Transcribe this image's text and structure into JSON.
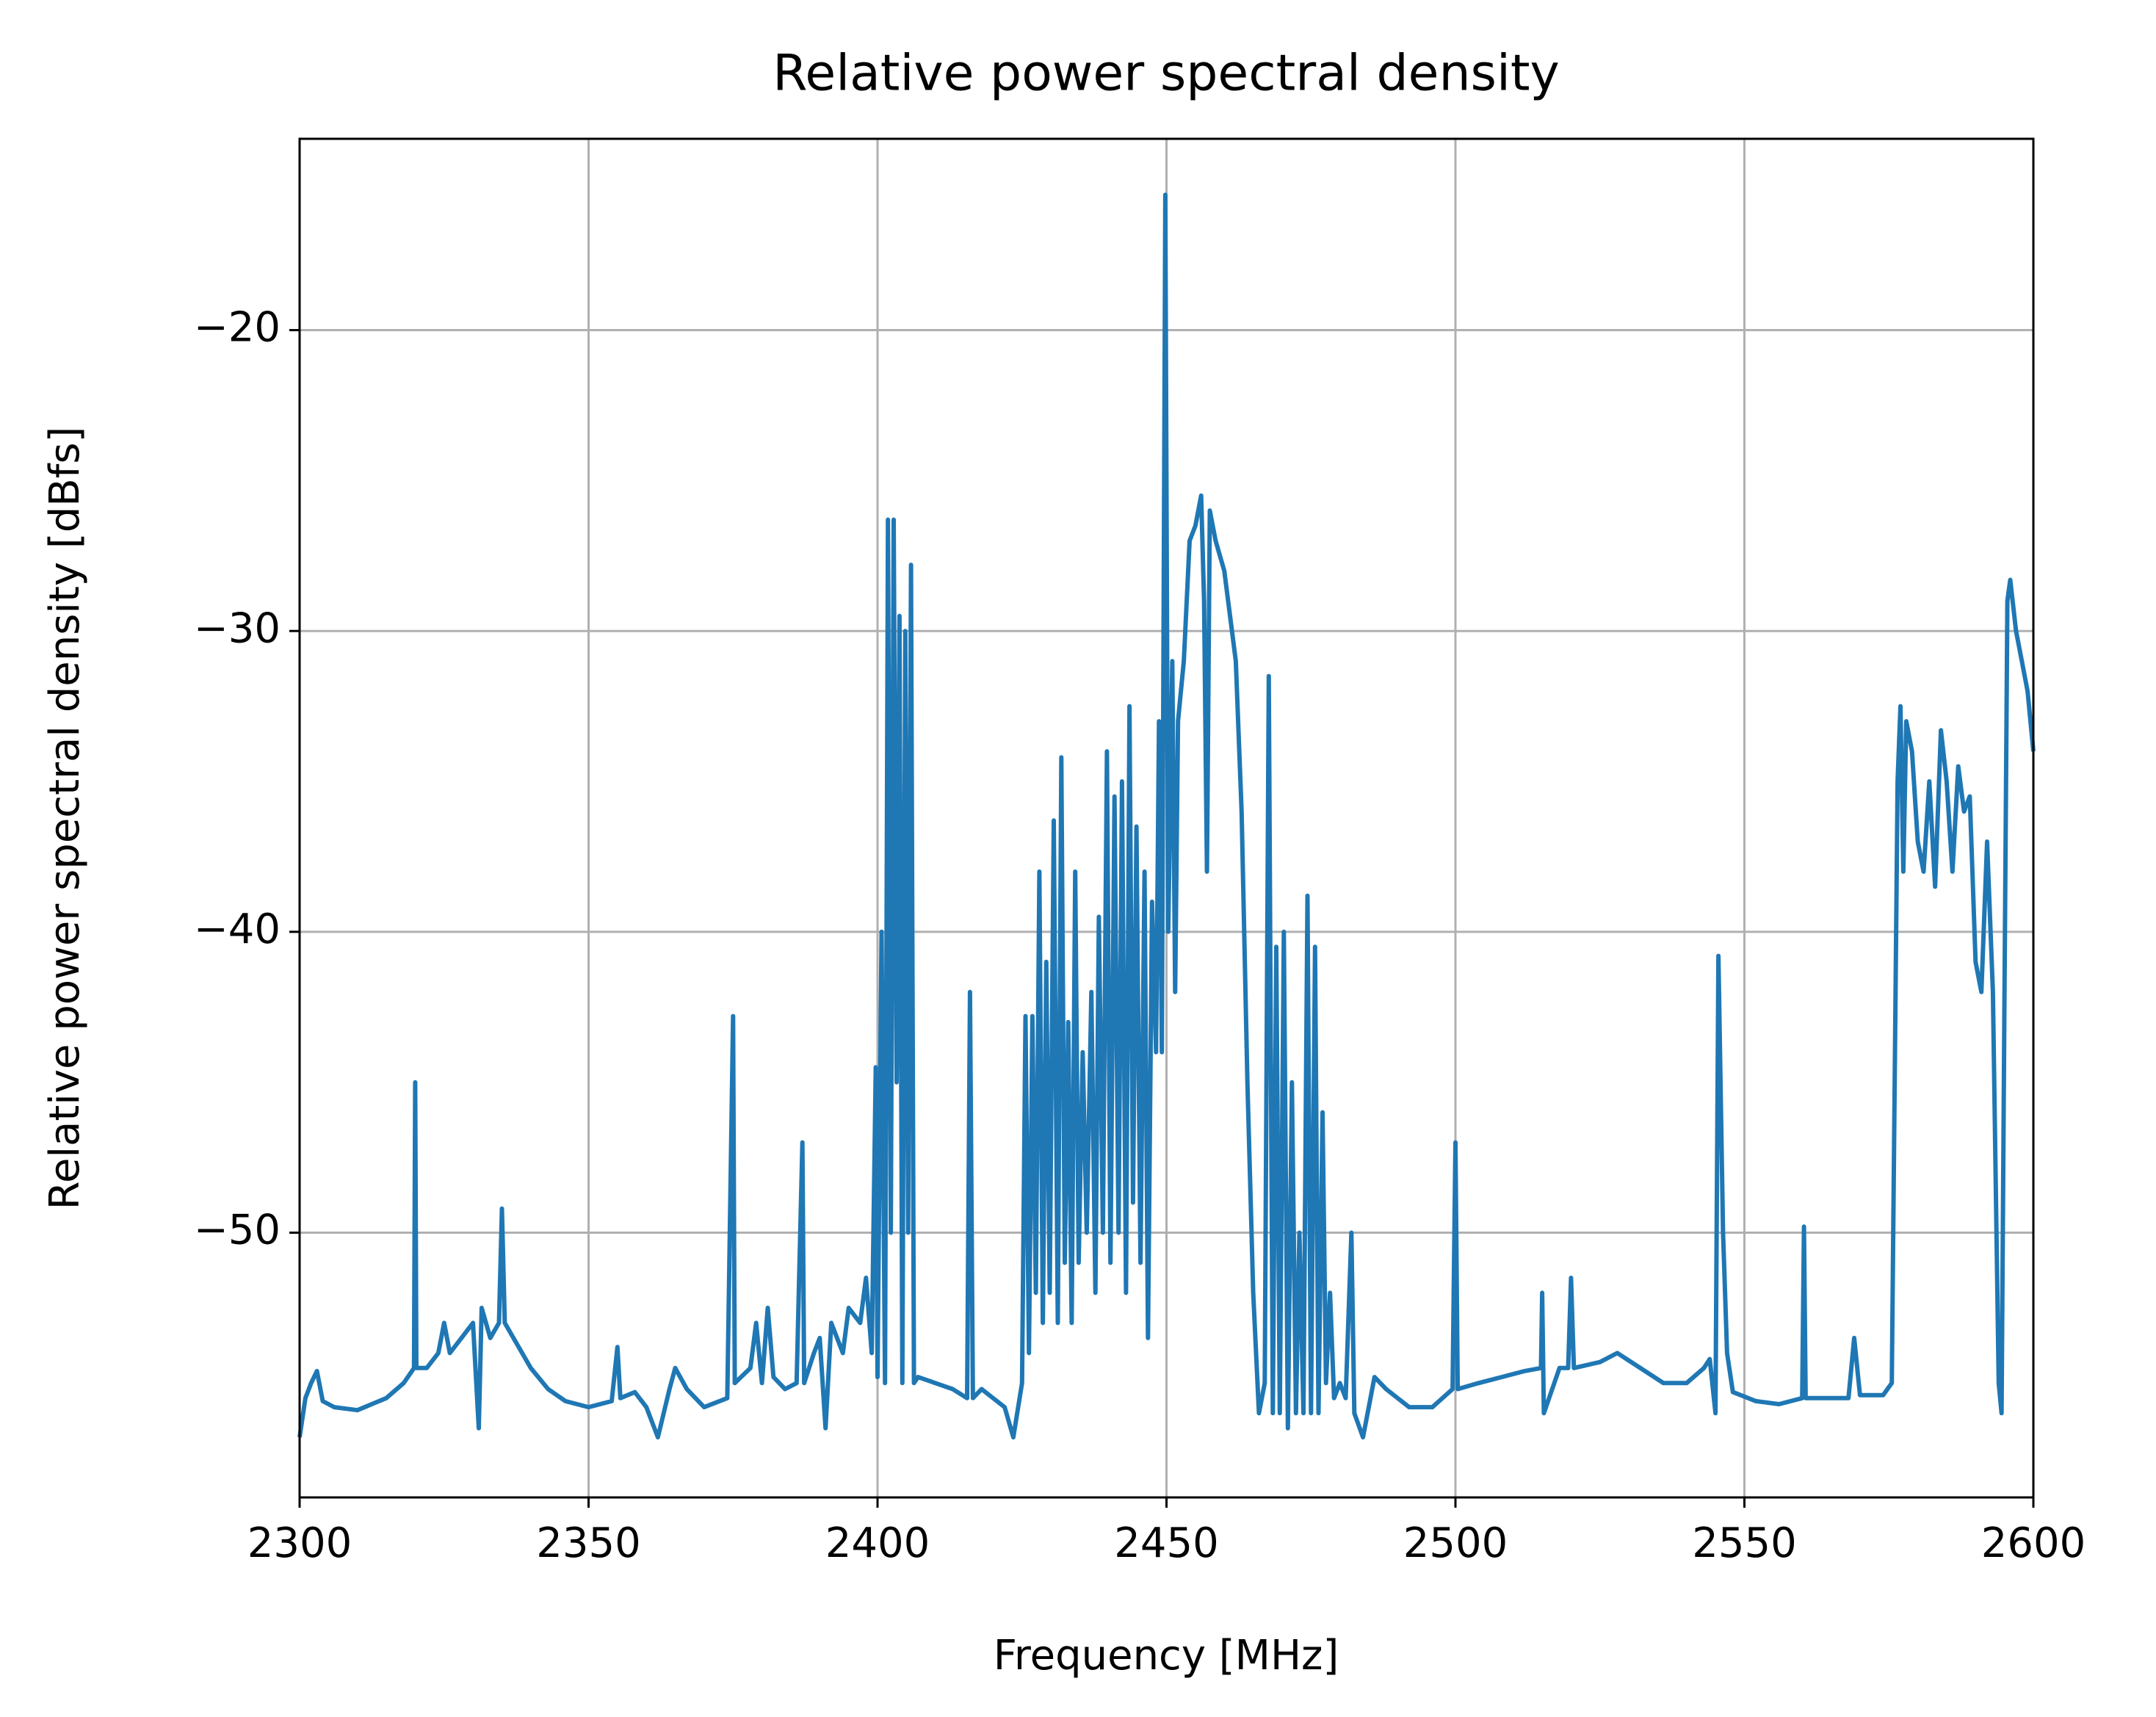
{
  "chart_data": {
    "type": "line",
    "title": "Relative power spectral density",
    "x_label": "Frequency [MHz]",
    "y_label": "Relative power spectral density [dBfs]",
    "color": "#1f77b4",
    "grid": true,
    "xlim": [
      2300,
      2600
    ],
    "xticks": [
      2300,
      2350,
      2400,
      2450,
      2500,
      2550,
      2600
    ],
    "ylim": [
      -58.8,
      -13.64
    ],
    "yticks": [
      {
        "value": -50,
        "label": "−50"
      },
      {
        "value": -40,
        "label": "−40"
      },
      {
        "value": -30,
        "label": "−30"
      },
      {
        "value": -20,
        "label": "−20"
      }
    ],
    "x": [
      2300,
      2301,
      2302,
      2303,
      2304,
      2306,
      2310,
      2315,
      2318,
      2319.8,
      2320,
      2320.2,
      2322,
      2324,
      2325,
      2326,
      2328,
      2330,
      2331,
      2331.5,
      2333,
      2334.5,
      2335,
      2335.5,
      2337,
      2340,
      2343,
      2346,
      2350,
      2354,
      2355,
      2355.5,
      2358,
      2360,
      2362,
      2364,
      2365,
      2367,
      2370,
      2374,
      2375,
      2375.3,
      2378,
      2379,
      2380,
      2381,
      2382,
      2384,
      2386,
      2387,
      2387.3,
      2389,
      2390,
      2391,
      2392,
      2394,
      2395,
      2397,
      2398,
      2399,
      2399.7,
      2400,
      2400.7,
      2401.3,
      2401.8,
      2402.3,
      2402.8,
      2403.3,
      2403.8,
      2404.3,
      2404.8,
      2405.3,
      2405.8,
      2406.3,
      2407,
      2410,
      2413,
      2415.5,
      2416,
      2416.5,
      2418,
      2420,
      2422,
      2423.5,
      2425,
      2425.6,
      2426.2,
      2426.8,
      2427.4,
      2428,
      2428.6,
      2429.2,
      2429.8,
      2430.5,
      2431.2,
      2431.8,
      2432.4,
      2433,
      2433.6,
      2434.2,
      2434.8,
      2435.5,
      2436.2,
      2437,
      2437.7,
      2438.3,
      2439,
      2439.7,
      2440.3,
      2441,
      2441.7,
      2442.3,
      2443,
      2443.6,
      2444.2,
      2444.8,
      2445.5,
      2446.2,
      2446.8,
      2447.5,
      2448.2,
      2448.7,
      2449.2,
      2449.8,
      2450.3,
      2451,
      2451.5,
      2452,
      2453,
      2454,
      2455,
      2456,
      2456.5,
      2457,
      2457.5,
      2458.5,
      2460,
      2462,
      2463,
      2464,
      2465,
      2466,
      2467,
      2467.7,
      2468.4,
      2469,
      2469.6,
      2470.3,
      2471,
      2471.7,
      2472.4,
      2473,
      2473.7,
      2474.4,
      2475,
      2475.7,
      2476.3,
      2477,
      2477.6,
      2478.3,
      2479,
      2480,
      2481,
      2482,
      2482.5,
      2484,
      2486,
      2488,
      2492,
      2496,
      2499.5,
      2500,
      2500.4,
      2504,
      2508,
      2512,
      2514.8,
      2515,
      2515.3,
      2518,
      2519.5,
      2520,
      2520.5,
      2525,
      2528,
      2532,
      2536,
      2540,
      2543,
      2544,
      2545,
      2545.5,
      2546.3,
      2547,
      2548,
      2552,
      2556,
      2560,
      2560.3,
      2560.6,
      2564,
      2568,
      2569,
      2570,
      2574,
      2575.5,
      2576.5,
      2577,
      2577.5,
      2578,
      2579,
      2580,
      2581,
      2582,
      2583,
      2584,
      2585,
      2586,
      2587,
      2588,
      2589,
      2590,
      2591,
      2592,
      2593,
      2594,
      2594.5,
      2595,
      2595.5,
      2596,
      2597,
      2598,
      2599,
      2600
    ],
    "values": [
      -56.8,
      -55.5,
      -55,
      -54.6,
      -55.6,
      -55.8,
      -55.9,
      -55.5,
      -55,
      -54.5,
      -45,
      -54.5,
      -54.5,
      -54,
      -53,
      -54,
      -53.5,
      -53,
      -56.5,
      -52.5,
      -53.5,
      -53,
      -49.2,
      -53,
      -53.5,
      -54.5,
      -55.2,
      -55.6,
      -55.8,
      -55.6,
      -53.8,
      -55.5,
      -55.3,
      -55.8,
      -56.8,
      -55.2,
      -54.5,
      -55.2,
      -55.8,
      -55.5,
      -42.8,
      -55,
      -54.5,
      -53,
      -55,
      -52.5,
      -54.8,
      -55.2,
      -55,
      -47,
      -55,
      -54,
      -53.5,
      -56.5,
      -53,
      -54,
      -52.5,
      -53,
      -51.5,
      -54,
      -44.5,
      -54.8,
      -40,
      -55,
      -26.3,
      -50,
      -26.3,
      -45,
      -29.5,
      -55,
      -30,
      -50,
      -27.8,
      -55,
      -54.8,
      -55,
      -55.2,
      -55.5,
      -42,
      -55.5,
      -55.2,
      -55.5,
      -55.8,
      -56.8,
      -55,
      -42.8,
      -54,
      -42.8,
      -52,
      -38,
      -53,
      -41,
      -52,
      -36.3,
      -53,
      -34.2,
      -51,
      -43,
      -53,
      -38,
      -51,
      -44,
      -50,
      -42,
      -52,
      -39.5,
      -50,
      -34,
      -51,
      -35.5,
      -50,
      -35,
      -52,
      -32.5,
      -49,
      -36.5,
      -51,
      -38,
      -53.5,
      -39,
      -44,
      -33,
      -44,
      -15.5,
      -40,
      -31,
      -42,
      -33,
      -31,
      -27,
      -26.5,
      -25.5,
      -29,
      -38,
      -26,
      -27,
      -28,
      -31,
      -36,
      -45,
      -52,
      -56,
      -55,
      -31.5,
      -56,
      -40.5,
      -56,
      -40,
      -56.5,
      -45,
      -56,
      -50,
      -56,
      -38.8,
      -56,
      -40.5,
      -56,
      -46,
      -55,
      -52,
      -55.5,
      -55,
      -55.5,
      -50,
      -56,
      -56.8,
      -54.8,
      -55.2,
      -55.8,
      -55.8,
      -55.2,
      -47,
      -55.2,
      -55,
      -54.8,
      -54.6,
      -54.5,
      -52,
      -56,
      -54.5,
      -54.5,
      -51.5,
      -54.5,
      -54.3,
      -54,
      -54.5,
      -55,
      -55,
      -54.5,
      -54.2,
      -56,
      -40.8,
      -50,
      -54,
      -55.3,
      -55.6,
      -55.7,
      -55.5,
      -49.8,
      -55.5,
      -55.5,
      -55.5,
      -53.5,
      -55.4,
      -55.4,
      -55,
      -35,
      -32.5,
      -38,
      -33,
      -34,
      -37,
      -38,
      -35,
      -38.5,
      -33.3,
      -35,
      -38,
      -34.5,
      -36,
      -35.5,
      -41,
      -42,
      -37,
      -42,
      -55,
      -56,
      -42,
      -29,
      -28.3,
      -30,
      -31,
      -32,
      -34
    ]
  }
}
